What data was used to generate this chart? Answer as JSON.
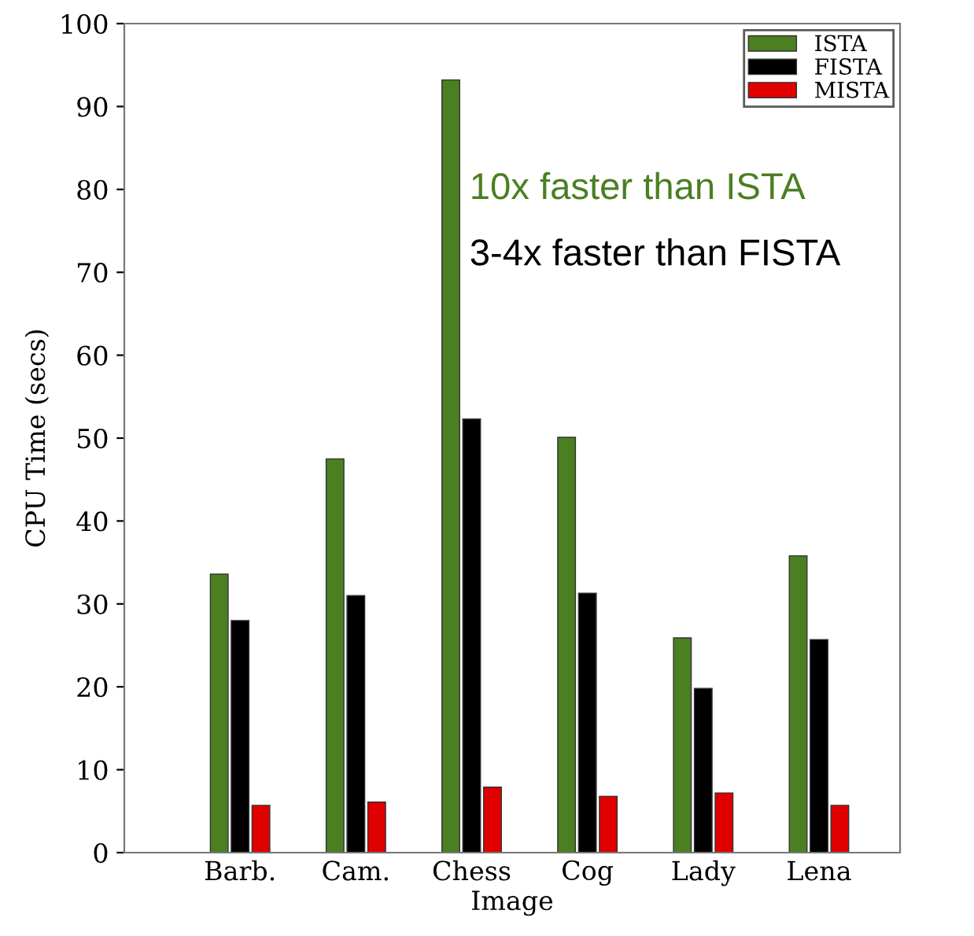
{
  "chart_data": {
    "type": "bar",
    "xlabel": "Image",
    "ylabel": "CPU Time (secs)",
    "categories": [
      "Barb.",
      "Cam.",
      "Chess",
      "Cog",
      "Lady",
      "Lena"
    ],
    "series": [
      {
        "name": "ISTA",
        "color": "#4a7f22",
        "values": [
          33.6,
          47.5,
          93.2,
          50.1,
          25.9,
          35.8
        ]
      },
      {
        "name": "FISTA",
        "color": "#000000",
        "values": [
          28.0,
          31.0,
          52.3,
          31.3,
          19.8,
          25.7
        ]
      },
      {
        "name": "MISTA",
        "color": "#e00000",
        "values": [
          5.7,
          6.1,
          7.9,
          6.8,
          7.2,
          5.7
        ]
      }
    ],
    "ylim": [
      0,
      100
    ],
    "yticks": [
      0,
      10,
      20,
      30,
      40,
      50,
      60,
      70,
      80,
      90,
      100
    ],
    "legend": "top right",
    "grid": false,
    "annotations": [
      "10x faster than ISTA",
      "3-4x faster than FISTA"
    ]
  }
}
